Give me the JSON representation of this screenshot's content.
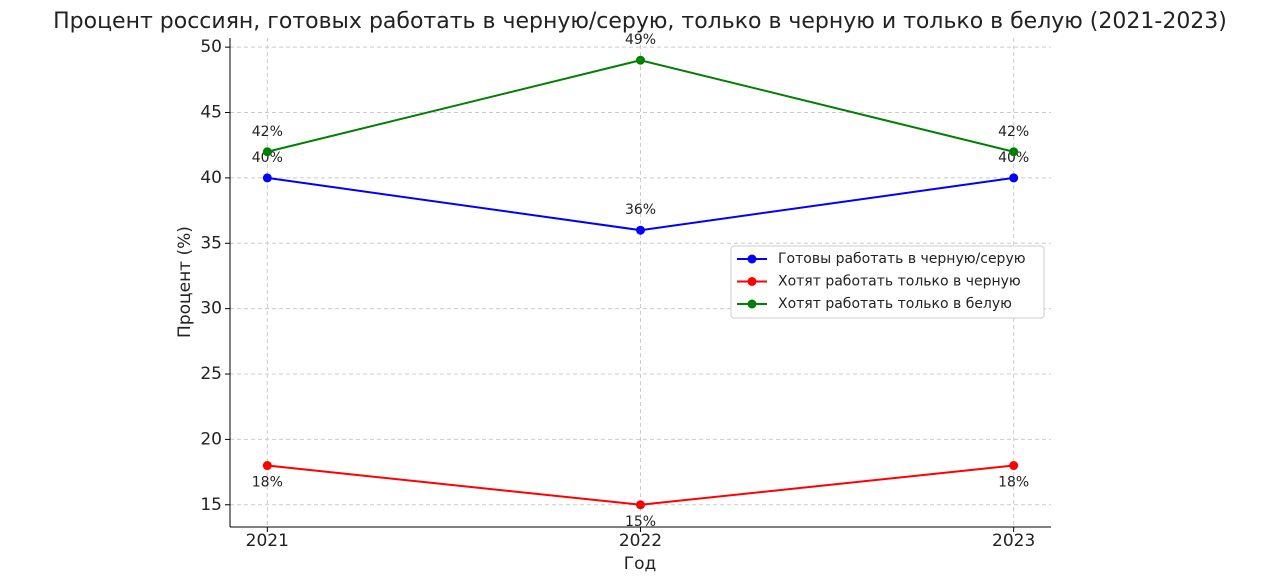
{
  "chart_data": {
    "type": "line",
    "title": "Процент россиян, готовых работать в черную/серую, только в черную и только в белую (2021-2023)",
    "x_label": "Год",
    "y_label": "Процент (%)",
    "x": [
      2021,
      2022,
      2023
    ],
    "series": [
      {
        "name": "Готовы работать в черную/серую",
        "color": "#0000ff",
        "values": [
          40,
          36,
          40
        ],
        "value_labels": [
          "40%",
          "36%",
          "40%"
        ]
      },
      {
        "name": "Хотят работать только в черную",
        "color": "#ff0000",
        "values": [
          18,
          15,
          18
        ],
        "value_labels": [
          "18%",
          "15%",
          "18%"
        ]
      },
      {
        "name": "Хотят работать только в белую",
        "color": "#008000",
        "values": [
          42,
          49,
          42
        ],
        "value_labels": [
          "42%",
          "49%",
          "42%"
        ]
      }
    ],
    "xlim": [
      2020.9,
      2023.1
    ],
    "xticks": [
      2021,
      2022,
      2023
    ],
    "ylim": [
      13.3,
      50.7
    ],
    "yticks": [
      15,
      20,
      25,
      30,
      35,
      40,
      45,
      50
    ],
    "grid": true,
    "legend": "center right"
  }
}
